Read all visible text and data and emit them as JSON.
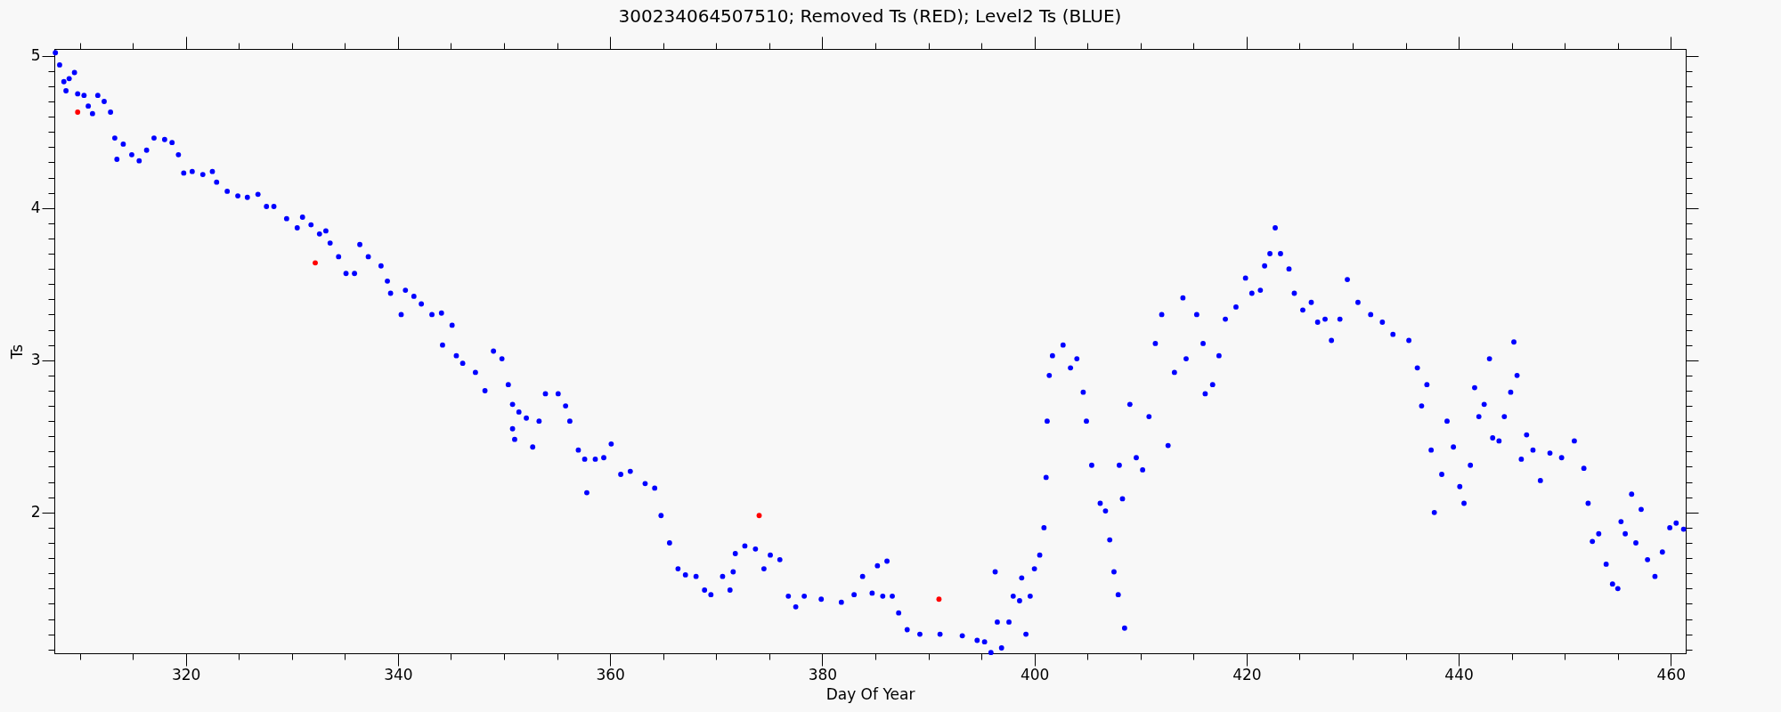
{
  "chart_data": {
    "type": "scatter",
    "title": "300234064507510; Removed Ts (RED); Level2 Ts (BLUE)",
    "xlabel": "Day Of Year",
    "ylabel": "Ts",
    "marker": "circle",
    "xlim": [
      307.6,
      461.4
    ],
    "ylim": [
      1.075,
      5.045
    ],
    "xticks": [
      {
        "value": 310,
        "label": null
      },
      {
        "value": 315,
        "label": null
      },
      320,
      {
        "value": 325,
        "label": null
      },
      {
        "value": 330,
        "label": null
      },
      {
        "value": 335,
        "label": null
      },
      340,
      {
        "value": 345,
        "label": null
      },
      {
        "value": 350,
        "label": null
      },
      {
        "value": 355,
        "label": null
      },
      360,
      {
        "value": 365,
        "label": null
      },
      {
        "value": 370,
        "label": null
      },
      {
        "value": 375,
        "label": null
      },
      380,
      {
        "value": 385,
        "label": null
      },
      {
        "value": 390,
        "label": null
      },
      {
        "value": 395,
        "label": null
      },
      400,
      {
        "value": 405,
        "label": null
      },
      {
        "value": 410,
        "label": null
      },
      {
        "value": 415,
        "label": null
      },
      420,
      {
        "value": 425,
        "label": null
      },
      {
        "value": 430,
        "label": null
      },
      {
        "value": 435,
        "label": null
      },
      440,
      {
        "value": 445,
        "label": null
      },
      {
        "value": 450,
        "label": null
      },
      {
        "value": 455,
        "label": null
      },
      460
    ],
    "yticks": [
      {
        "value": 1.1,
        "label": null
      },
      {
        "value": 1.2,
        "label": null
      },
      {
        "value": 1.3,
        "label": null
      },
      {
        "value": 1.4,
        "label": null
      },
      {
        "value": 1.5,
        "label": null
      },
      {
        "value": 1.6,
        "label": null
      },
      {
        "value": 1.7,
        "label": null
      },
      {
        "value": 1.8,
        "label": null
      },
      {
        "value": 1.9,
        "label": null
      },
      2,
      {
        "value": 2.1,
        "label": null
      },
      {
        "value": 2.2,
        "label": null
      },
      {
        "value": 2.3,
        "label": null
      },
      {
        "value": 2.4,
        "label": null
      },
      {
        "value": 2.5,
        "label": null
      },
      {
        "value": 2.6,
        "label": null
      },
      {
        "value": 2.7,
        "label": null
      },
      {
        "value": 2.8,
        "label": null
      },
      {
        "value": 2.9,
        "label": null
      },
      3,
      {
        "value": 3.1,
        "label": null
      },
      {
        "value": 3.2,
        "label": null
      },
      {
        "value": 3.3,
        "label": null
      },
      {
        "value": 3.4,
        "label": null
      },
      {
        "value": 3.5,
        "label": null
      },
      {
        "value": 3.6,
        "label": null
      },
      {
        "value": 3.7,
        "label": null
      },
      {
        "value": 3.8,
        "label": null
      },
      {
        "value": 3.9,
        "label": null
      },
      4,
      {
        "value": 4.1,
        "label": null
      },
      {
        "value": 4.2,
        "label": null
      },
      {
        "value": 4.3,
        "label": null
      },
      {
        "value": 4.4,
        "label": null
      },
      {
        "value": 4.5,
        "label": null
      },
      {
        "value": 4.6,
        "label": null
      },
      {
        "value": 4.7,
        "label": null
      },
      {
        "value": 4.8,
        "label": null
      },
      {
        "value": 4.9,
        "label": null
      },
      5
    ],
    "series": [
      {
        "color": "#0000ff",
        "x": [
          307.7,
          308.1,
          308.5,
          308.7,
          309.0,
          309.5,
          309.8,
          310.4,
          310.8,
          311.2,
          311.7,
          312.3,
          312.9,
          313.3,
          313.5,
          314.1,
          314.9,
          315.6,
          316.3,
          317.0,
          318.0,
          318.7,
          319.3,
          319.8,
          320.6,
          321.6,
          322.5,
          322.9,
          323.9,
          324.9,
          325.8,
          326.8,
          327.6,
          328.3,
          329.5,
          330.5,
          331.0,
          331.8,
          332.6,
          333.2,
          333.6,
          334.4,
          335.1,
          335.9,
          336.4,
          337.2,
          338.4,
          339.0,
          339.3,
          340.3,
          340.7,
          341.5,
          342.2,
          343.2,
          344.1,
          344.2,
          345.1,
          345.5,
          346.1,
          347.3,
          348.2,
          349.0,
          349.8,
          350.4,
          350.8,
          350.8,
          351.0,
          351.4,
          352.1,
          352.7,
          353.3,
          353.9,
          355.1,
          355.8,
          356.2,
          357.0,
          357.6,
          357.8,
          358.6,
          359.4,
          360.1,
          361.0,
          361.9,
          363.3,
          364.2,
          364.8,
          365.6,
          366.4,
          367.1,
          368.1,
          368.9,
          369.5,
          370.6,
          371.3,
          371.6,
          371.8,
          372.7,
          373.7,
          374.5,
          375.1,
          376.0,
          376.8,
          377.5,
          378.3,
          379.9,
          381.8,
          383.0,
          383.8,
          384.7,
          385.2,
          385.7,
          386.1,
          386.6,
          387.2,
          388.0,
          389.2,
          391.1,
          393.2,
          394.6,
          395.3,
          395.9,
          396.3,
          396.5,
          396.9,
          397.6,
          398.0,
          398.6,
          398.8,
          399.2,
          399.6,
          400.0,
          400.5,
          400.9,
          401.1,
          401.2,
          401.4,
          401.7,
          402.7,
          403.4,
          404.0,
          404.6,
          404.9,
          405.4,
          406.2,
          406.7,
          407.1,
          407.5,
          407.9,
          408.5,
          408.0,
          408.3,
          409.0,
          409.6,
          410.2,
          410.8,
          411.4,
          412.0,
          412.6,
          413.2,
          414.0,
          414.3,
          415.3,
          415.9,
          416.1,
          416.8,
          417.4,
          418.0,
          419.0,
          419.9,
          420.5,
          421.3,
          421.7,
          422.2,
          422.7,
          423.2,
          424.0,
          424.5,
          425.3,
          426.1,
          426.7,
          427.4,
          428.0,
          428.8,
          429.5,
          430.5,
          431.7,
          432.8,
          433.8,
          435.3,
          436.1,
          436.5,
          437.0,
          437.4,
          437.7,
          438.4,
          438.9,
          439.5,
          440.1,
          440.5,
          441.1,
          441.5,
          441.9,
          442.4,
          442.9,
          443.2,
          443.8,
          444.3,
          444.9,
          445.2,
          445.5,
          445.9,
          446.4,
          447.0,
          447.7,
          448.6,
          449.7,
          450.9,
          451.8,
          452.2,
          452.6,
          453.2,
          453.9,
          454.5,
          455.0,
          455.3,
          455.7,
          456.3,
          456.7,
          457.2,
          457.8,
          458.5,
          459.2,
          459.9,
          460.5,
          461.2
        ],
        "values": [
          5.02,
          4.94,
          4.83,
          4.77,
          4.85,
          4.89,
          4.75,
          4.74,
          4.67,
          4.62,
          4.74,
          4.7,
          4.63,
          4.46,
          4.32,
          4.42,
          4.35,
          4.31,
          4.38,
          4.46,
          4.45,
          4.43,
          4.35,
          4.23,
          4.24,
          4.22,
          4.24,
          4.17,
          4.11,
          4.08,
          4.07,
          4.09,
          4.01,
          4.01,
          3.93,
          3.87,
          3.94,
          3.89,
          3.83,
          3.85,
          3.77,
          3.68,
          3.57,
          3.57,
          3.76,
          3.68,
          3.62,
          3.52,
          3.44,
          3.3,
          3.46,
          3.42,
          3.37,
          3.3,
          3.31,
          3.1,
          3.23,
          3.03,
          2.98,
          2.92,
          2.8,
          3.06,
          3.01,
          2.84,
          2.71,
          2.55,
          2.48,
          2.66,
          2.62,
          2.43,
          2.6,
          2.78,
          2.78,
          2.7,
          2.6,
          2.41,
          2.35,
          2.13,
          2.35,
          2.36,
          2.45,
          2.25,
          2.27,
          2.19,
          2.16,
          1.98,
          1.8,
          1.63,
          1.59,
          1.58,
          1.49,
          1.46,
          1.58,
          1.49,
          1.61,
          1.73,
          1.78,
          1.76,
          1.63,
          1.72,
          1.69,
          1.45,
          1.38,
          1.45,
          1.43,
          1.41,
          1.46,
          1.58,
          1.47,
          1.65,
          1.45,
          1.68,
          1.45,
          1.34,
          1.23,
          1.2,
          1.2,
          1.19,
          1.16,
          1.15,
          1.08,
          1.61,
          1.28,
          1.11,
          1.28,
          1.45,
          1.42,
          1.57,
          1.2,
          1.45,
          1.63,
          1.72,
          1.9,
          2.23,
          2.6,
          2.9,
          3.03,
          3.1,
          2.95,
          3.01,
          2.79,
          2.6,
          2.31,
          2.06,
          2.01,
          1.82,
          1.61,
          1.46,
          1.24,
          2.31,
          2.09,
          2.71,
          2.36,
          2.28,
          2.63,
          3.11,
          3.3,
          2.44,
          2.92,
          3.41,
          3.01,
          3.3,
          3.11,
          2.78,
          2.84,
          3.03,
          3.27,
          3.35,
          3.54,
          3.44,
          3.46,
          3.62,
          3.7,
          3.87,
          3.7,
          3.6,
          3.44,
          3.33,
          3.38,
          3.25,
          3.27,
          3.13,
          3.27,
          3.53,
          3.38,
          3.3,
          3.25,
          3.17,
          3.13,
          2.95,
          2.7,
          2.84,
          2.41,
          2.0,
          2.25,
          2.6,
          2.43,
          2.17,
          2.06,
          2.31,
          2.82,
          2.63,
          2.71,
          3.01,
          2.49,
          2.47,
          2.63,
          2.79,
          3.12,
          2.9,
          2.35,
          2.51,
          2.41,
          2.21,
          2.39,
          2.36,
          2.47,
          2.29,
          2.06,
          1.81,
          1.86,
          1.66,
          1.53,
          1.5,
          1.94,
          1.86,
          2.12,
          1.8,
          2.02,
          1.69,
          1.58,
          1.74,
          1.9,
          1.93,
          1.89
        ]
      },
      {
        "color": "#ff0000",
        "x": [
          309.8,
          332.2,
          374.05,
          391.0
        ],
        "values": [
          4.63,
          3.64,
          1.98,
          1.43
        ]
      }
    ]
  }
}
